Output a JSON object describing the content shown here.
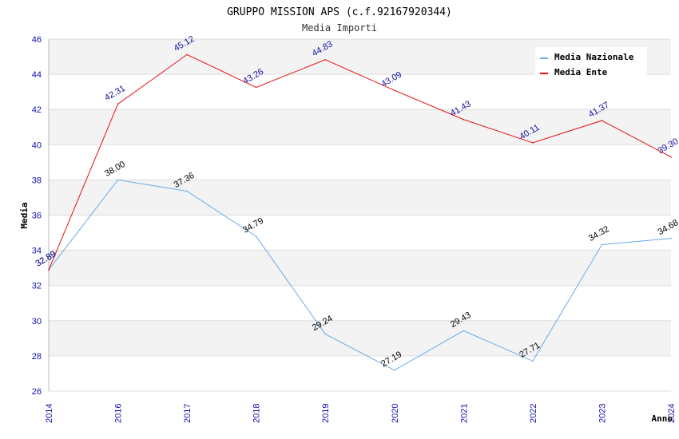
{
  "chart_data": {
    "type": "line",
    "title": "GRUPPO MISSION APS (c.f.92167920344)",
    "subtitle": "Media Importi",
    "xlabel": "Anno",
    "ylabel": "Media",
    "categories": [
      "2014",
      "2016",
      "2017",
      "2018",
      "2019",
      "2020",
      "2021",
      "2022",
      "2023",
      "2024"
    ],
    "ylim": [
      26,
      46
    ],
    "yticks": [
      26,
      28,
      30,
      32,
      34,
      36,
      38,
      40,
      42,
      44,
      46
    ],
    "grid": true,
    "legend_position": "top-right",
    "series": [
      {
        "name": "Media Nazionale",
        "color": "#6aaae8",
        "label_color": "#000000",
        "values": [
          32.89,
          38.0,
          37.36,
          34.79,
          29.24,
          27.19,
          29.43,
          27.71,
          34.32,
          34.68
        ],
        "labels": [
          "32.89",
          "38.00",
          "37.36",
          "34.79",
          "29.24",
          "27.19",
          "29.43",
          "27.71",
          "34.32",
          "34.68"
        ]
      },
      {
        "name": "Media Ente",
        "color": "#e81010",
        "label_color": "#1010a0",
        "values": [
          32.89,
          42.31,
          45.12,
          43.26,
          44.83,
          43.09,
          41.43,
          40.11,
          41.37,
          39.3
        ],
        "labels": [
          "32.89",
          "42.31",
          "45.12",
          "43.26",
          "44.83",
          "43.09",
          "41.43",
          "40.11",
          "41.37",
          "39.30"
        ]
      }
    ]
  }
}
